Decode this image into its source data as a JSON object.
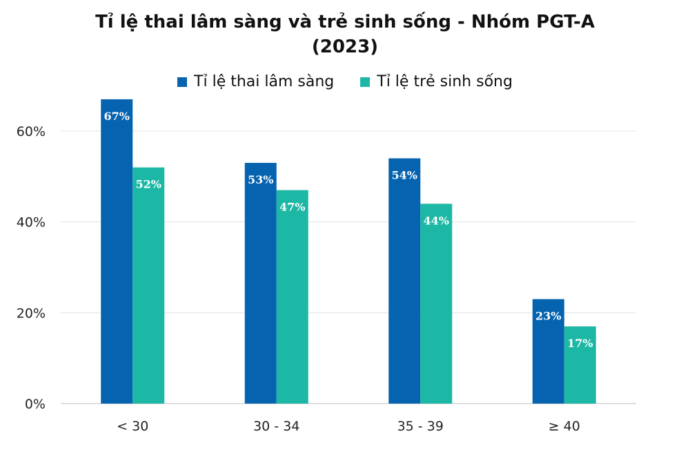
{
  "chart_data": {
    "type": "bar",
    "title_line1": "Tỉ lệ thai lâm sàng và trẻ sinh sống - Nhóm PGT-A",
    "title_line2": "(2023)",
    "categories": [
      "< 30",
      "30 - 34",
      "35 - 39",
      "≥ 40"
    ],
    "series": [
      {
        "name": "Tỉ lệ thai lâm sàng",
        "color": "#0563B0",
        "values": [
          67,
          53,
          54,
          23
        ],
        "labels": [
          "67%",
          "53%",
          "54%",
          "23%"
        ]
      },
      {
        "name": "Tỉ lệ trẻ sinh sống",
        "color": "#1DB8A5",
        "values": [
          52,
          47,
          44,
          17
        ],
        "labels": [
          "52%",
          "47%",
          "44%",
          "17%"
        ]
      }
    ],
    "ylim": [
      0,
      60
    ],
    "yticks": [
      0,
      20,
      40,
      60
    ],
    "ytick_labels": [
      "0%",
      "20%",
      "40%",
      "60%"
    ],
    "grid": true,
    "legend_position": "top"
  }
}
